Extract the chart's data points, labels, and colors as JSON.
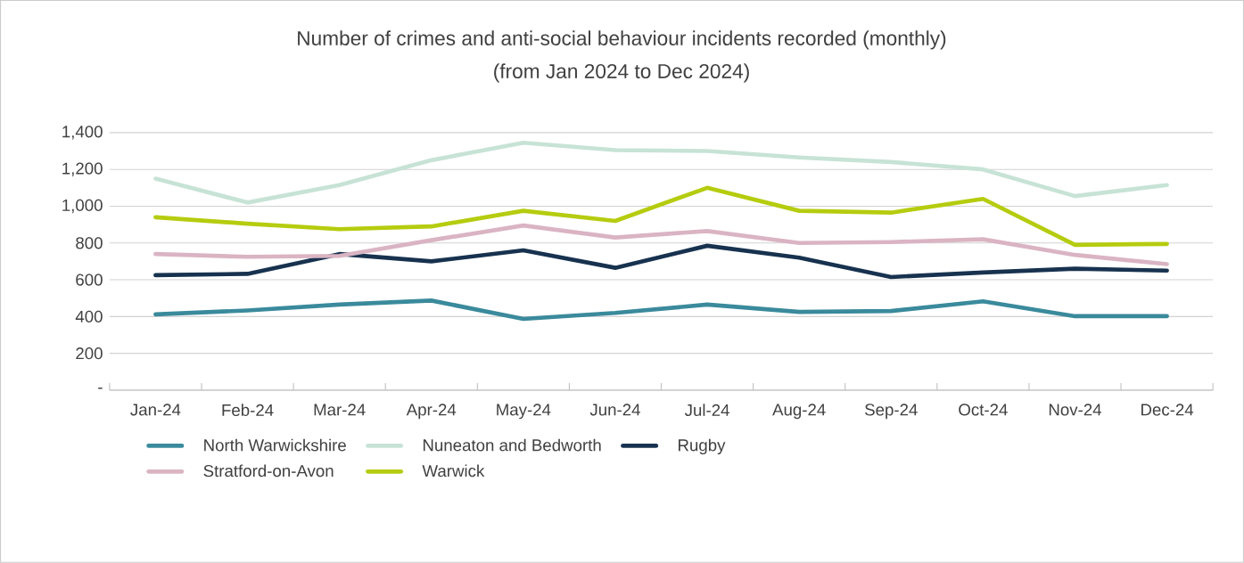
{
  "chart_data": {
    "type": "line",
    "title": "Number of crimes and anti-social behaviour incidents recorded (monthly)",
    "subtitle": "(from Jan 2024 to Dec 2024)",
    "categories": [
      "Jan-24",
      "Feb-24",
      "Mar-24",
      "Apr-24",
      "May-24",
      "Jun-24",
      "Jul-24",
      "Aug-24",
      "Sep-24",
      "Oct-24",
      "Nov-24",
      "Dec-24"
    ],
    "series": [
      {
        "name": "North Warwickshire",
        "color": "#3a8a9c",
        "values": [
          412,
          433,
          465,
          487,
          387,
          420,
          465,
          425,
          430,
          483,
          402,
          402
        ]
      },
      {
        "name": "Nuneaton and Bedworth",
        "color": "#c7e3d6",
        "values": [
          1150,
          1020,
          1115,
          1250,
          1345,
          1305,
          1300,
          1265,
          1240,
          1200,
          1055,
          1115
        ]
      },
      {
        "name": "Rugby",
        "color": "#17324f",
        "values": [
          625,
          632,
          740,
          700,
          760,
          665,
          785,
          720,
          615,
          640,
          660,
          650
        ]
      },
      {
        "name": "Stratford-on-Avon",
        "color": "#dab4c3",
        "values": [
          740,
          725,
          730,
          815,
          895,
          830,
          865,
          800,
          805,
          820,
          735,
          685
        ]
      },
      {
        "name": "Warwick",
        "color": "#b5cc0f",
        "values": [
          940,
          905,
          875,
          890,
          975,
          920,
          1100,
          975,
          965,
          1040,
          790,
          795
        ]
      }
    ],
    "ylim": [
      0,
      1400
    ],
    "yticks": [
      {
        "value": 0,
        "label": "-"
      },
      200,
      400,
      600,
      800,
      {
        "value": 1000,
        "label": "1,000"
      },
      {
        "value": 1200,
        "label": "1,200"
      },
      {
        "value": 1400,
        "label": "1,400"
      }
    ],
    "grid": "y",
    "legend": "bottom",
    "marker": "none",
    "line_style": "solid"
  }
}
